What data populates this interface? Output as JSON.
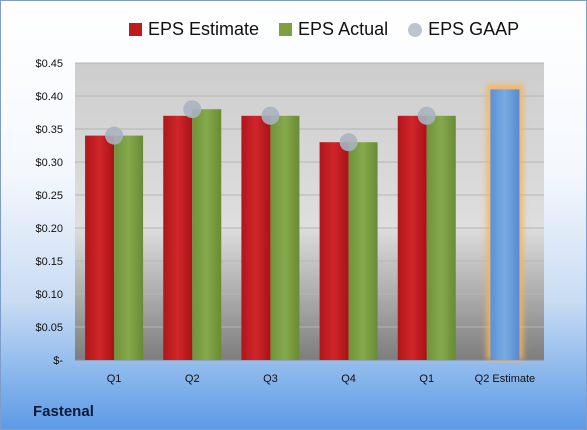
{
  "company": "Fastenal",
  "chart_data": {
    "type": "bar",
    "categories": [
      "Q1",
      "Q2",
      "Q3",
      "Q4",
      "Q1",
      "Q2 Estimate"
    ],
    "y_ticks": [
      "$-",
      "$0.05",
      "$0.10",
      "$0.15",
      "$0.20",
      "$0.25",
      "$0.30",
      "$0.35",
      "$0.40",
      "$0.45"
    ],
    "ylim": [
      0,
      0.45
    ],
    "grid": true,
    "legend_position": "top",
    "series": [
      {
        "name": "EPS Estimate",
        "kind": "bar",
        "color": "#c0191e",
        "values": [
          0.34,
          0.37,
          0.37,
          0.33,
          0.37,
          null
        ]
      },
      {
        "name": "EPS Actual",
        "kind": "bar",
        "color": "#7da043",
        "values": [
          0.34,
          0.38,
          0.37,
          0.33,
          0.37,
          null
        ]
      },
      {
        "name": "EPS GAAP",
        "kind": "marker",
        "color": "#a9b3bf",
        "values": [
          0.34,
          0.38,
          0.37,
          0.33,
          0.37,
          null
        ]
      },
      {
        "kind": "bar",
        "color": "#6a9fdc",
        "highlight": "#f7b45a",
        "values": [
          null,
          null,
          null,
          null,
          null,
          0.41
        ]
      }
    ]
  }
}
